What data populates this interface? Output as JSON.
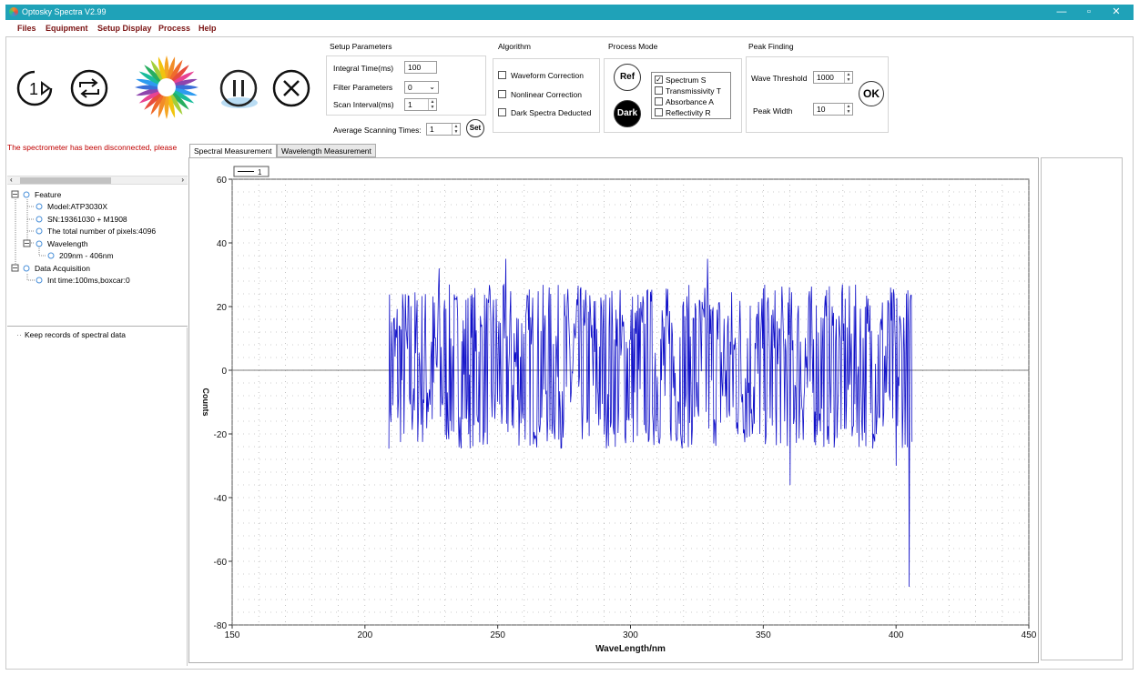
{
  "window": {
    "title": "Optosky Spectra V2.99",
    "minimize": "—",
    "maximize": "▫",
    "close": "✕"
  },
  "menu": [
    "Files",
    "Equipment",
    "Setup Display",
    "Process",
    "Help"
  ],
  "setup_parameters": {
    "title": "Setup Parameters",
    "integral_time_label": "Integral Time(ms)",
    "integral_time_value": "100",
    "filter_label": "Filter Parameters",
    "filter_value": "0",
    "scan_interval_label": "Scan Interval(ms)",
    "scan_interval_value": "1",
    "avg_label": "Average Scanning Times:",
    "avg_value": "1",
    "set_button": "Set"
  },
  "algorithm": {
    "title": "Algorithm",
    "options": [
      {
        "label": "Waveform Correction",
        "checked": false
      },
      {
        "label": "Nonlinear Correction",
        "checked": false
      },
      {
        "label": "Dark Spectra Deducted",
        "checked": false
      }
    ]
  },
  "process_mode": {
    "title": "Process Mode",
    "ref_button": "Ref",
    "dark_button": "Dark",
    "options": [
      {
        "label": "Spectrum S",
        "checked": true
      },
      {
        "label": "Transmissivity T",
        "checked": false
      },
      {
        "label": "Absorbance A",
        "checked": false
      },
      {
        "label": "Reflectivity R",
        "checked": false
      }
    ]
  },
  "peak_finding": {
    "title": "Peak Finding",
    "wave_threshold_label": "Wave Threshold",
    "wave_threshold_value": "1000",
    "peak_width_label": "Peak Width",
    "peak_width_value": "10",
    "ok_button": "OK"
  },
  "status_message": "The spectrometer has been disconnected, please",
  "tree": {
    "feature": "Feature",
    "model": "Model:ATP3030X",
    "sn": "SN:19361030 + M1908",
    "pixels": "The total number of pixels:4096",
    "wavelength": "Wavelength",
    "wavelength_range": "209nm - 406nm",
    "data_acquisition": "Data Acquisition",
    "int_time": "Int time:100ms,boxcar:0"
  },
  "records_label": "Keep records of spectral data",
  "tabs": [
    "Spectral Measurement",
    "Wavelength Measurement"
  ],
  "colors": {
    "titlebar": "#1fa2b8",
    "menu_text": "#7a1212",
    "status_text": "#c00000",
    "series": "#1010c8"
  },
  "chart_data": {
    "type": "line",
    "xlabel": "WaveLength/nm",
    "ylabel": "Counts",
    "xlim": [
      150,
      450
    ],
    "ylim": [
      -80,
      60
    ],
    "xticks": [
      150,
      200,
      250,
      300,
      350,
      400,
      450
    ],
    "yticks": [
      -80,
      -60,
      -40,
      -20,
      0,
      20,
      40,
      60
    ],
    "legend": "top-left",
    "grid": true,
    "series": [
      {
        "name": "1",
        "x_range": [
          209,
          406
        ],
        "description": "noise trace oscillating about 0, mostly between -30 and 33 counts",
        "noise_min": -30,
        "noise_max": 33,
        "extremes": [
          {
            "x": 228,
            "y": 32
          },
          {
            "x": 253,
            "y": 35
          },
          {
            "x": 329,
            "y": 35
          },
          {
            "x": 360,
            "y": -36
          },
          {
            "x": 400,
            "y": -30
          },
          {
            "x": 405,
            "y": -68
          }
        ]
      }
    ]
  }
}
